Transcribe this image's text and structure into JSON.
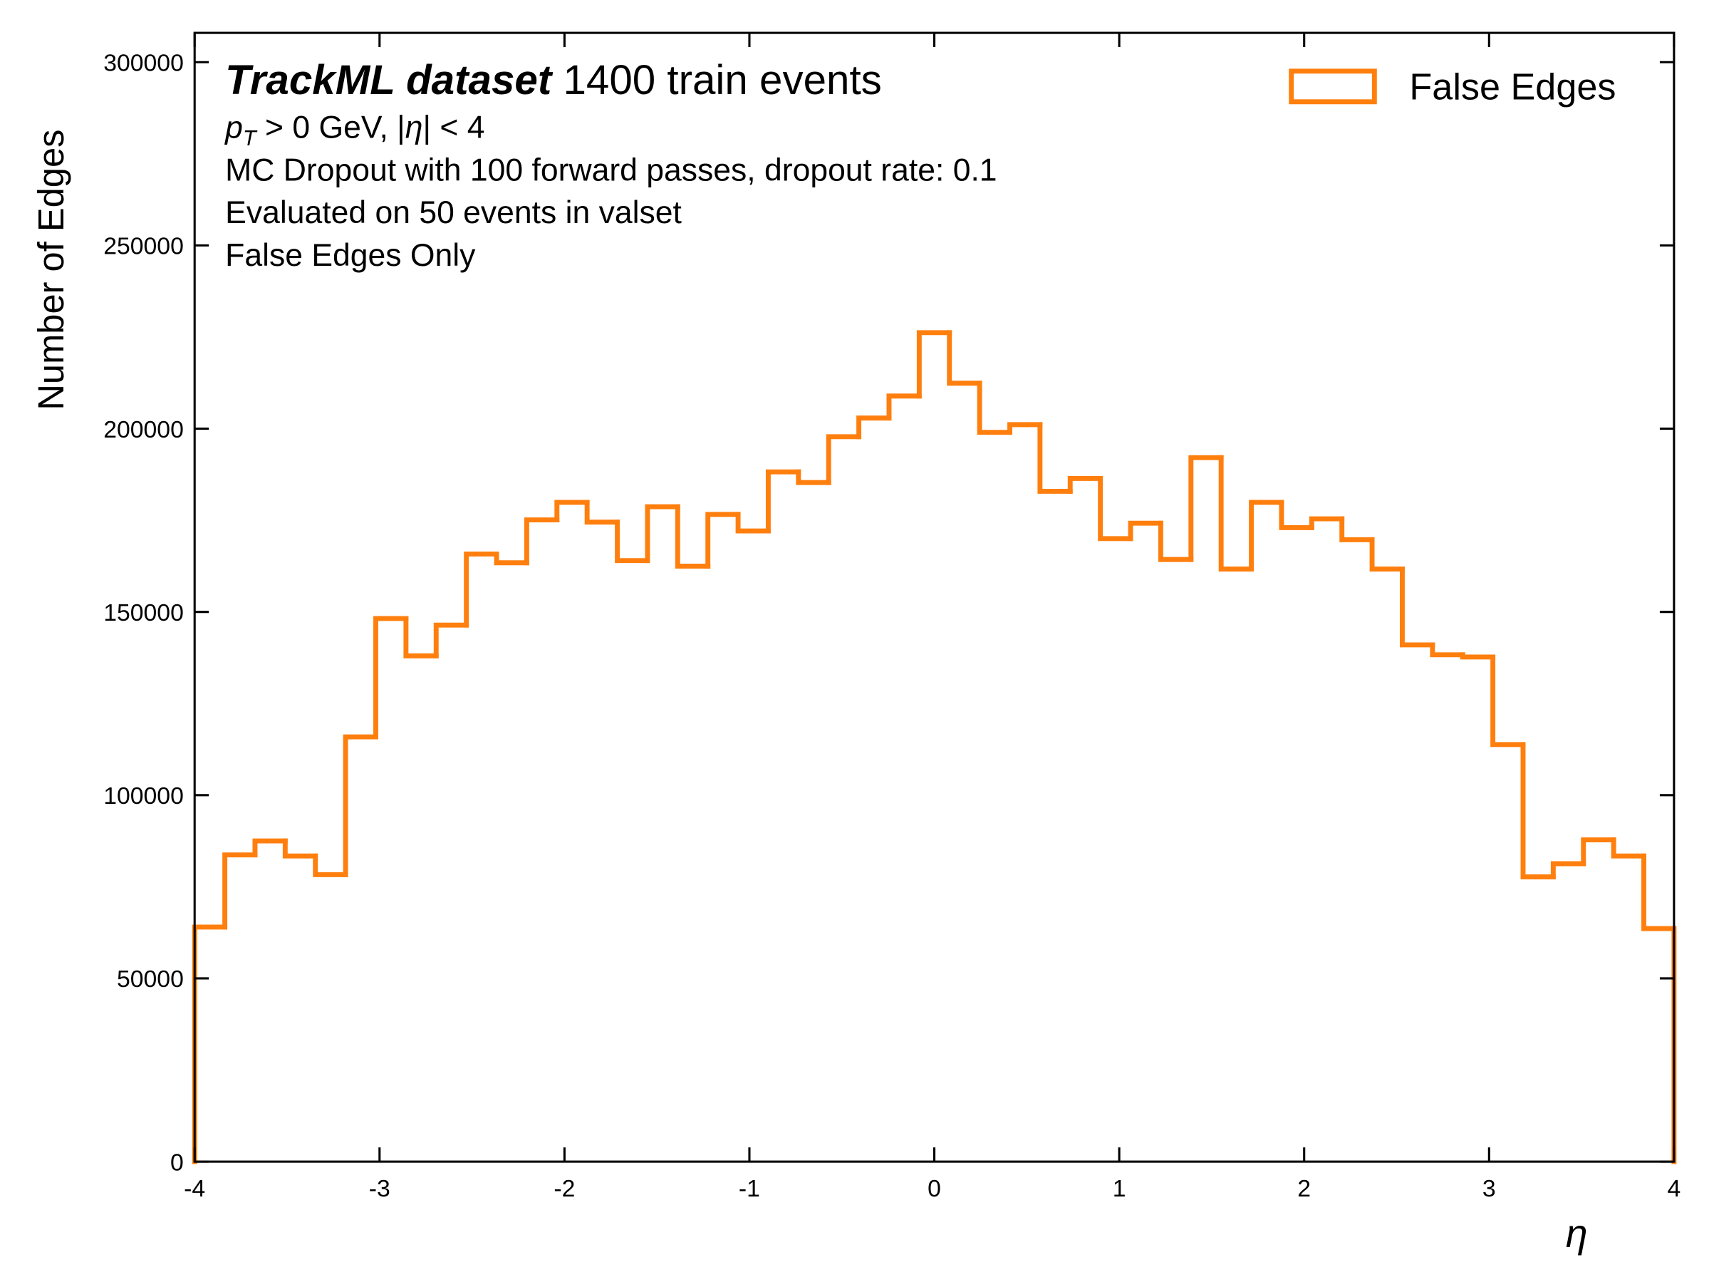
{
  "chart_data": {
    "type": "histogram",
    "experiment_label": "TrackML dataset",
    "title": "1400 train events",
    "annotations": [
      [
        "p",
        "T",
        " > 0 GeV, |",
        "η",
        "| < 4"
      ],
      "MC Dropout with 100 forward passes, dropout rate: 0.1",
      "Evaluated on 50 events in valset",
      "False Edges Only"
    ],
    "xlabel": "η",
    "ylabel": "Number of Edges",
    "legend": "upper right",
    "bins": [
      -4,
      -3.8367,
      -3.6735,
      -3.5102,
      -3.3469,
      -3.1837,
      -3.0204,
      -2.8571,
      -2.6939,
      -2.5306,
      -2.3673,
      -2.2041,
      -2.0408,
      -1.8776,
      -1.7143,
      -1.551,
      -1.3878,
      -1.2245,
      -1.0612,
      -0.898,
      -0.7347,
      -0.5714,
      -0.4082,
      -0.2449,
      -0.0816,
      0.0816,
      0.2449,
      0.4082,
      0.5714,
      0.7347,
      0.898,
      1.0612,
      1.2245,
      1.3878,
      1.551,
      1.7143,
      1.8776,
      2.0408,
      2.2041,
      2.3673,
      2.5306,
      2.6939,
      2.8571,
      3.0204,
      3.1837,
      3.3469,
      3.5102,
      3.6735,
      3.8367,
      4
    ],
    "series": [
      {
        "name": "False Edges",
        "color": "#ff7f0e",
        "values": [
          64000,
          83700,
          87500,
          83400,
          78300,
          115900,
          148200,
          138000,
          146400,
          165800,
          163400,
          175100,
          179900,
          174500,
          164000,
          178700,
          162500,
          176600,
          172100,
          188200,
          185300,
          197800,
          202900,
          208900,
          226200,
          212400,
          199000,
          201100,
          182900,
          186400,
          170000,
          174200,
          164300,
          192100,
          161700,
          179900,
          173000,
          175400,
          169700,
          161700,
          141000,
          138300,
          137700,
          113800,
          77700,
          81300,
          87800,
          83400,
          63600
        ]
      }
    ],
    "xlim": [
      -4,
      4
    ],
    "xticks": [
      -4,
      -3,
      -2,
      -1,
      0,
      1,
      2,
      3,
      4
    ],
    "ylim": [
      0,
      308000
    ],
    "yticks": [
      0,
      50000,
      100000,
      150000,
      200000,
      250000,
      300000
    ]
  }
}
